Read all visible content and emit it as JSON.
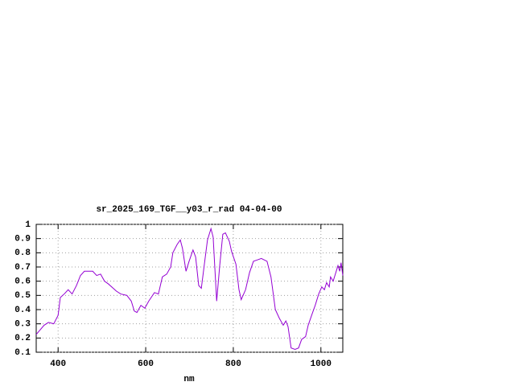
{
  "chart_data": {
    "type": "line",
    "title": "sr_2025_169_TGF__y03_r_rad 04-04-00",
    "x_label": "nm",
    "x": [
      350,
      368,
      378,
      390,
      400,
      405,
      414,
      423,
      432,
      442,
      451,
      460,
      479,
      488,
      497,
      506,
      515,
      533,
      543,
      557,
      567,
      574,
      580,
      589,
      598,
      607,
      620,
      629,
      638,
      648,
      657,
      662,
      672,
      679,
      684,
      692,
      699,
      708,
      714,
      721,
      727,
      736,
      741,
      749,
      754,
      762,
      769,
      776,
      782,
      791,
      796,
      806,
      813,
      818,
      828,
      837,
      846,
      855,
      864,
      877,
      886,
      896,
      905,
      914,
      920,
      925,
      932,
      941,
      949,
      956,
      965,
      971,
      980,
      987,
      995,
      1002,
      1008,
      1013,
      1019,
      1022,
      1028,
      1032,
      1035,
      1039,
      1043,
      1046,
      1050
    ],
    "values": [
      0.225,
      0.29,
      0.31,
      0.3,
      0.36,
      0.485,
      0.51,
      0.54,
      0.51,
      0.57,
      0.64,
      0.67,
      0.67,
      0.64,
      0.65,
      0.6,
      0.58,
      0.53,
      0.51,
      0.5,
      0.46,
      0.39,
      0.38,
      0.43,
      0.41,
      0.46,
      0.52,
      0.51,
      0.63,
      0.65,
      0.7,
      0.8,
      0.86,
      0.89,
      0.83,
      0.67,
      0.74,
      0.82,
      0.77,
      0.57,
      0.55,
      0.77,
      0.89,
      0.97,
      0.91,
      0.46,
      0.71,
      0.93,
      0.94,
      0.88,
      0.81,
      0.72,
      0.54,
      0.47,
      0.54,
      0.66,
      0.74,
      0.75,
      0.76,
      0.74,
      0.63,
      0.4,
      0.34,
      0.29,
      0.32,
      0.28,
      0.13,
      0.12,
      0.13,
      0.19,
      0.21,
      0.29,
      0.37,
      0.43,
      0.51,
      0.56,
      0.54,
      0.59,
      0.56,
      0.63,
      0.6,
      0.64,
      0.67,
      0.71,
      0.67,
      0.73,
      0.64
    ],
    "color": "#9400d3",
    "xlim": [
      350,
      1050
    ],
    "xticks": [
      400,
      600,
      800,
      1000
    ],
    "ylim": [
      0.1,
      1
    ],
    "yticks": [
      0.1,
      0.2,
      0.3,
      0.4,
      0.5,
      0.6,
      0.7,
      0.8,
      0.9,
      1
    ],
    "grid": true
  }
}
